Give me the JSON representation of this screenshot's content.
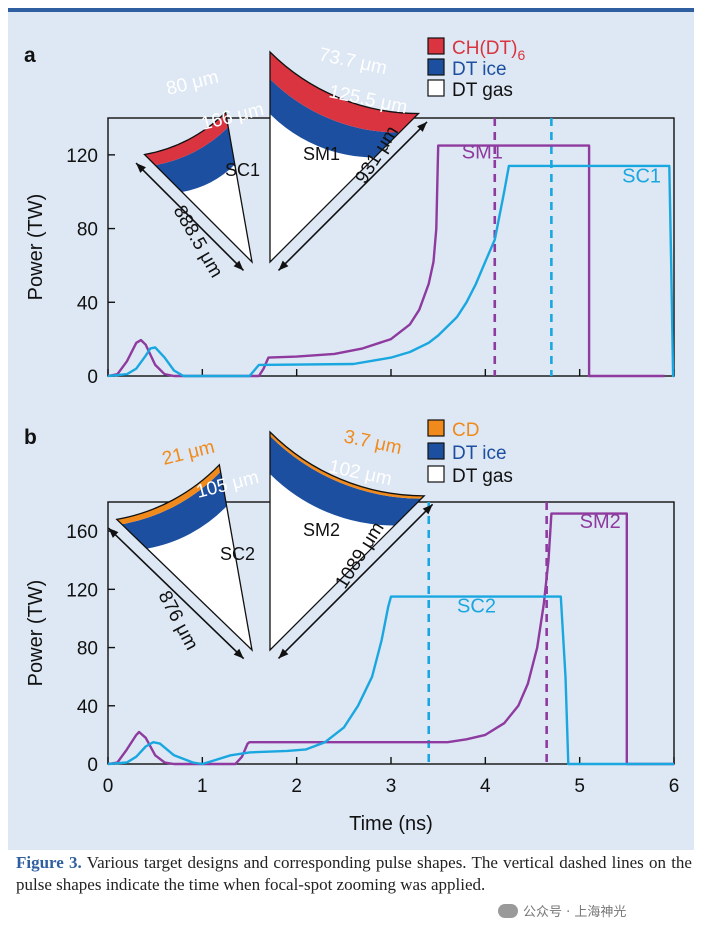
{
  "colors": {
    "background": "#dde8f4",
    "frame": "#2f5fa0",
    "sm_line": "#8e3a9e",
    "sc_line": "#1aa7e0",
    "ch_red": "#d9343f",
    "dt_ice_blue": "#1d4fa0",
    "cd_orange": "#f08a1c",
    "caption_label": "#2f5fa0"
  },
  "chart_data": [
    {
      "panel_label": "a",
      "type": "line",
      "xlabel": "",
      "ylabel": "Power (TW)",
      "xlim": [
        0,
        6
      ],
      "ylim": [
        0,
        140
      ],
      "yticks": [
        0,
        40,
        80,
        120
      ],
      "xticks": [
        0,
        1,
        2,
        3,
        4,
        5,
        6
      ],
      "x_tick_labels_shown": false,
      "series": [
        {
          "name": "SM1",
          "color": "sm_line",
          "points": [
            [
              0,
              0
            ],
            [
              0.1,
              1
            ],
            [
              0.2,
              8
            ],
            [
              0.3,
              18
            ],
            [
              0.35,
              19.5
            ],
            [
              0.4,
              17
            ],
            [
              0.5,
              6
            ],
            [
              0.6,
              1
            ],
            [
              0.7,
              0
            ],
            [
              1.6,
              0
            ],
            [
              1.65,
              4
            ],
            [
              1.7,
              10
            ],
            [
              2.0,
              10.5
            ],
            [
              2.4,
              12
            ],
            [
              2.7,
              15
            ],
            [
              3.0,
              20
            ],
            [
              3.2,
              28
            ],
            [
              3.3,
              36
            ],
            [
              3.4,
              50
            ],
            [
              3.45,
              62
            ],
            [
              3.48,
              80
            ],
            [
              3.5,
              125
            ],
            [
              5.1,
              125
            ],
            [
              5.1,
              0
            ],
            [
              5.9,
              0
            ]
          ],
          "label": "SM1",
          "label_at": [
            3.75,
            118
          ]
        },
        {
          "name": "SC1",
          "color": "sc_line",
          "points": [
            [
              0,
              0
            ],
            [
              0.2,
              1
            ],
            [
              0.3,
              4
            ],
            [
              0.4,
              11
            ],
            [
              0.45,
              15
            ],
            [
              0.5,
              15.5
            ],
            [
              0.6,
              10
            ],
            [
              0.7,
              3
            ],
            [
              0.8,
              0
            ],
            [
              1.5,
              0
            ],
            [
              1.55,
              3
            ],
            [
              1.6,
              6
            ],
            [
              2.6,
              6.5
            ],
            [
              3.0,
              10
            ],
            [
              3.2,
              13
            ],
            [
              3.4,
              18
            ],
            [
              3.5,
              22
            ],
            [
              3.7,
              32
            ],
            [
              3.8,
              40
            ],
            [
              3.9,
              50
            ],
            [
              4.0,
              62
            ],
            [
              4.1,
              74
            ],
            [
              4.2,
              100
            ],
            [
              4.25,
              114
            ],
            [
              5.95,
              114
            ],
            [
              5.97,
              60
            ],
            [
              5.99,
              0
            ],
            [
              6,
              0
            ]
          ],
          "label": "SC1",
          "label_at": [
            5.45,
            105
          ]
        }
      ],
      "vlines": [
        {
          "x": 4.1,
          "color": "sm_line"
        },
        {
          "x": 4.7,
          "color": "sc_line"
        }
      ],
      "legend": [
        {
          "swatch": "ch_red",
          "label": "CH(DT)",
          "subscript": "6"
        },
        {
          "swatch": "dt_ice_blue",
          "label": "DT ice",
          "subscript": ""
        },
        {
          "swatch": "white",
          "label": "DT gas",
          "subscript": ""
        }
      ],
      "targets": [
        {
          "name": "SC1",
          "layer_outer": "80 μm",
          "layer_inner": "166 μm",
          "radius_label": "888.5 μm",
          "outer_color": "ch_red"
        },
        {
          "name": "SM1",
          "layer_outer": "73.7 μm",
          "layer_inner": "125.5 μm",
          "radius_label": "931 μm",
          "outer_color": "ch_red"
        }
      ]
    },
    {
      "panel_label": "b",
      "type": "line",
      "xlabel": "Time (ns)",
      "ylabel": "Power (TW)",
      "xlim": [
        0,
        6
      ],
      "ylim": [
        0,
        180
      ],
      "yticks": [
        0,
        40,
        80,
        120,
        160
      ],
      "xticks": [
        0,
        1,
        2,
        3,
        4,
        5,
        6
      ],
      "x_tick_labels_shown": true,
      "series": [
        {
          "name": "SM2",
          "color": "sm_line",
          "points": [
            [
              0,
              0
            ],
            [
              0.1,
              1
            ],
            [
              0.2,
              10
            ],
            [
              0.3,
              20
            ],
            [
              0.33,
              22
            ],
            [
              0.4,
              18
            ],
            [
              0.5,
              6
            ],
            [
              0.6,
              1
            ],
            [
              0.7,
              0
            ],
            [
              1.35,
              0
            ],
            [
              1.42,
              5
            ],
            [
              1.48,
              14
            ],
            [
              1.5,
              15
            ],
            [
              3.6,
              15
            ],
            [
              3.8,
              17
            ],
            [
              4.0,
              20
            ],
            [
              4.2,
              28
            ],
            [
              4.35,
              40
            ],
            [
              4.45,
              55
            ],
            [
              4.55,
              80
            ],
            [
              4.62,
              110
            ],
            [
              4.67,
              140
            ],
            [
              4.7,
              172
            ],
            [
              5.5,
              172
            ],
            [
              5.5,
              0
            ],
            [
              6,
              0
            ]
          ],
          "label": "SM2",
          "label_at": [
            5.0,
            162
          ]
        },
        {
          "name": "SC2",
          "color": "sc_line",
          "points": [
            [
              0,
              0
            ],
            [
              0.2,
              1
            ],
            [
              0.3,
              5
            ],
            [
              0.4,
              12
            ],
            [
              0.48,
              15
            ],
            [
              0.55,
              14
            ],
            [
              0.7,
              6
            ],
            [
              0.9,
              1
            ],
            [
              1.0,
              0
            ],
            [
              1.1,
              2
            ],
            [
              1.3,
              6
            ],
            [
              1.5,
              8
            ],
            [
              1.9,
              9
            ],
            [
              2.1,
              10
            ],
            [
              2.3,
              15
            ],
            [
              2.5,
              25
            ],
            [
              2.65,
              40
            ],
            [
              2.8,
              60
            ],
            [
              2.9,
              85
            ],
            [
              2.97,
              108
            ],
            [
              3.0,
              115
            ],
            [
              4.8,
              115
            ],
            [
              4.85,
              60
            ],
            [
              4.88,
              0
            ],
            [
              6,
              0
            ]
          ],
          "label": "SC2",
          "label_at": [
            3.7,
            104
          ]
        }
      ],
      "vlines": [
        {
          "x": 3.4,
          "color": "sc_line"
        },
        {
          "x": 4.65,
          "color": "sm_line"
        }
      ],
      "legend": [
        {
          "swatch": "cd_orange",
          "label": "CD",
          "subscript": ""
        },
        {
          "swatch": "dt_ice_blue",
          "label": "DT ice",
          "subscript": ""
        },
        {
          "swatch": "white",
          "label": "DT gas",
          "subscript": ""
        }
      ],
      "targets": [
        {
          "name": "SC2",
          "layer_outer": "21 μm",
          "layer_inner": "105 μm",
          "radius_label": "876 μm",
          "outer_color": "cd_orange"
        },
        {
          "name": "SM2",
          "layer_outer": "3.7 μm",
          "layer_inner": "102 μm",
          "radius_label": "1089 μm",
          "outer_color": "cd_orange"
        }
      ]
    }
  ],
  "caption": {
    "label": "Figure 3.",
    "text": "Various target designs and corresponding pulse shapes. The vertical dashed lines on the pulse shapes indicate the time when focal-spot zooming was applied."
  },
  "watermark": {
    "text": "公众号 · 上海神光"
  }
}
